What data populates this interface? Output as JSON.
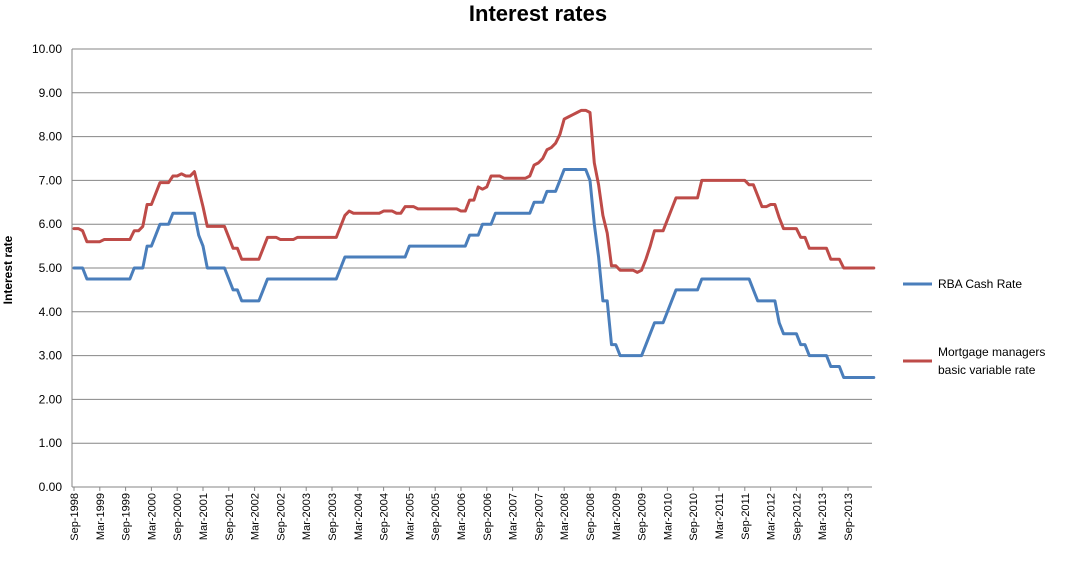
{
  "chart_data": {
    "type": "line",
    "title": "Interest rates",
    "xlabel": "",
    "ylabel": "Interest rate",
    "ylim": [
      0,
      10
    ],
    "yticks": [
      "0.00",
      "1.00",
      "2.00",
      "3.00",
      "4.00",
      "5.00",
      "6.00",
      "7.00",
      "8.00",
      "9.00",
      "10.00"
    ],
    "x_ticks": [
      "Sep-1998",
      "Mar-1999",
      "Sep-1999",
      "Mar-2000",
      "Sep-2000",
      "Mar-2001",
      "Sep-2001",
      "Mar-2002",
      "Sep-2002",
      "Mar-2003",
      "Sep-2003",
      "Mar-2004",
      "Sep-2004",
      "Mar-2005",
      "Sep-2005",
      "Mar-2006",
      "Sep-2006",
      "Mar-2007",
      "Sep-2007",
      "Mar-2008",
      "Sep-2008",
      "Mar-2009",
      "Sep-2009",
      "Mar-2010",
      "Sep-2010",
      "Mar-2011",
      "Sep-2011",
      "Mar-2012",
      "Sep-2012",
      "Mar-2013",
      "Sep-2013"
    ],
    "grid": true,
    "legend_position": "right",
    "series": [
      {
        "name": "RBA Cash Rate",
        "color": "#4a7ebb",
        "points": [
          [
            "Sep-1998",
            5.0
          ],
          [
            "Nov-1998",
            5.0
          ],
          [
            "Dec-1998",
            4.75
          ],
          [
            "Mar-1999",
            4.75
          ],
          [
            "Sep-1999",
            4.75
          ],
          [
            "Oct-1999",
            4.75
          ],
          [
            "Nov-1999",
            5.0
          ],
          [
            "Jan-2000",
            5.0
          ],
          [
            "Feb-2000",
            5.5
          ],
          [
            "Mar-2000",
            5.5
          ],
          [
            "Apr-2000",
            5.75
          ],
          [
            "May-2000",
            6.0
          ],
          [
            "Jul-2000",
            6.0
          ],
          [
            "Aug-2000",
            6.25
          ],
          [
            "Jan-2001",
            6.25
          ],
          [
            "Feb-2001",
            5.75
          ],
          [
            "Mar-2001",
            5.5
          ],
          [
            "Apr-2001",
            5.0
          ],
          [
            "Aug-2001",
            5.0
          ],
          [
            "Sep-2001",
            4.75
          ],
          [
            "Oct-2001",
            4.5
          ],
          [
            "Nov-2001",
            4.5
          ],
          [
            "Dec-2001",
            4.25
          ],
          [
            "Apr-2002",
            4.25
          ],
          [
            "May-2002",
            4.5
          ],
          [
            "Jun-2002",
            4.75
          ],
          [
            "Oct-2003",
            4.75
          ],
          [
            "Nov-2003",
            5.0
          ],
          [
            "Dec-2003",
            5.25
          ],
          [
            "Feb-2005",
            5.25
          ],
          [
            "Mar-2005",
            5.5
          ],
          [
            "Apr-2006",
            5.5
          ],
          [
            "May-2006",
            5.75
          ],
          [
            "Jul-2006",
            5.75
          ],
          [
            "Aug-2006",
            6.0
          ],
          [
            "Oct-2006",
            6.0
          ],
          [
            "Nov-2006",
            6.25
          ],
          [
            "Jul-2007",
            6.25
          ],
          [
            "Aug-2007",
            6.5
          ],
          [
            "Sep-2007",
            6.5
          ],
          [
            "Oct-2007",
            6.5
          ],
          [
            "Nov-2007",
            6.75
          ],
          [
            "Jan-2008",
            6.75
          ],
          [
            "Feb-2008",
            7.0
          ],
          [
            "Mar-2008",
            7.25
          ],
          [
            "Aug-2008",
            7.25
          ],
          [
            "Sep-2008",
            7.0
          ],
          [
            "Oct-2008",
            6.0
          ],
          [
            "Nov-2008",
            5.25
          ],
          [
            "Dec-2008",
            4.25
          ],
          [
            "Jan-2009",
            4.25
          ],
          [
            "Feb-2009",
            3.25
          ],
          [
            "Mar-2009",
            3.25
          ],
          [
            "Apr-2009",
            3.0
          ],
          [
            "Sep-2009",
            3.0
          ],
          [
            "Oct-2009",
            3.25
          ],
          [
            "Nov-2009",
            3.5
          ],
          [
            "Dec-2009",
            3.75
          ],
          [
            "Feb-2010",
            3.75
          ],
          [
            "Mar-2010",
            4.0
          ],
          [
            "Apr-2010",
            4.25
          ],
          [
            "May-2010",
            4.5
          ],
          [
            "Oct-2010",
            4.5
          ],
          [
            "Nov-2010",
            4.75
          ],
          [
            "Oct-2011",
            4.75
          ],
          [
            "Nov-2011",
            4.5
          ],
          [
            "Dec-2011",
            4.25
          ],
          [
            "Apr-2012",
            4.25
          ],
          [
            "May-2012",
            3.75
          ],
          [
            "Jun-2012",
            3.5
          ],
          [
            "Sep-2012",
            3.5
          ],
          [
            "Oct-2012",
            3.25
          ],
          [
            "Nov-2012",
            3.25
          ],
          [
            "Dec-2012",
            3.0
          ],
          [
            "Apr-2013",
            3.0
          ],
          [
            "May-2013",
            2.75
          ],
          [
            "Jul-2013",
            2.75
          ],
          [
            "Aug-2013",
            2.5
          ],
          [
            "Mar-2014",
            2.5
          ]
        ]
      },
      {
        "name": "Mortgage managers basic variable rate",
        "color": "#be4b48",
        "points": [
          [
            "Sep-1998",
            5.9
          ],
          [
            "Oct-1998",
            5.9
          ],
          [
            "Nov-1998",
            5.85
          ],
          [
            "Dec-1998",
            5.6
          ],
          [
            "Feb-1999",
            5.6
          ],
          [
            "Mar-1999",
            5.6
          ],
          [
            "Apr-1999",
            5.65
          ],
          [
            "Sep-1999",
            5.65
          ],
          [
            "Oct-1999",
            5.65
          ],
          [
            "Nov-1999",
            5.85
          ],
          [
            "Dec-1999",
            5.85
          ],
          [
            "Jan-2000",
            5.95
          ],
          [
            "Feb-2000",
            6.45
          ],
          [
            "Mar-2000",
            6.45
          ],
          [
            "Apr-2000",
            6.7
          ],
          [
            "May-2000",
            6.95
          ],
          [
            "Jul-2000",
            6.95
          ],
          [
            "Aug-2000",
            7.1
          ],
          [
            "Sep-2000",
            7.1
          ],
          [
            "Oct-2000",
            7.15
          ],
          [
            "Nov-2000",
            7.1
          ],
          [
            "Dec-2000",
            7.1
          ],
          [
            "Jan-2001",
            7.2
          ],
          [
            "Feb-2001",
            6.8
          ],
          [
            "Mar-2001",
            6.4
          ],
          [
            "Apr-2001",
            5.95
          ],
          [
            "Aug-2001",
            5.95
          ],
          [
            "Sep-2001",
            5.7
          ],
          [
            "Oct-2001",
            5.45
          ],
          [
            "Nov-2001",
            5.45
          ],
          [
            "Dec-2001",
            5.2
          ],
          [
            "Apr-2002",
            5.2
          ],
          [
            "May-2002",
            5.45
          ],
          [
            "Jun-2002",
            5.7
          ],
          [
            "Aug-2002",
            5.7
          ],
          [
            "Sep-2002",
            5.65
          ],
          [
            "Dec-2002",
            5.65
          ],
          [
            "Jan-2003",
            5.7
          ],
          [
            "Oct-2003",
            5.7
          ],
          [
            "Nov-2003",
            5.95
          ],
          [
            "Dec-2003",
            6.2
          ],
          [
            "Jan-2004",
            6.3
          ],
          [
            "Feb-2004",
            6.25
          ],
          [
            "Aug-2004",
            6.25
          ],
          [
            "Sep-2004",
            6.3
          ],
          [
            "Nov-2004",
            6.3
          ],
          [
            "Dec-2004",
            6.25
          ],
          [
            "Jan-2005",
            6.25
          ],
          [
            "Feb-2005",
            6.4
          ],
          [
            "Apr-2005",
            6.4
          ],
          [
            "May-2005",
            6.35
          ],
          [
            "Feb-2006",
            6.35
          ],
          [
            "Mar-2006",
            6.3
          ],
          [
            "Apr-2006",
            6.3
          ],
          [
            "May-2006",
            6.55
          ],
          [
            "Jun-2006",
            6.55
          ],
          [
            "Jul-2006",
            6.85
          ],
          [
            "Aug-2006",
            6.8
          ],
          [
            "Sep-2006",
            6.85
          ],
          [
            "Oct-2006",
            7.1
          ],
          [
            "Dec-2006",
            7.1
          ],
          [
            "Jan-2007",
            7.05
          ],
          [
            "Jun-2007",
            7.05
          ],
          [
            "Jul-2007",
            7.1
          ],
          [
            "Aug-2007",
            7.35
          ],
          [
            "Sep-2007",
            7.4
          ],
          [
            "Oct-2007",
            7.5
          ],
          [
            "Nov-2007",
            7.7
          ],
          [
            "Dec-2007",
            7.75
          ],
          [
            "Jan-2008",
            7.85
          ],
          [
            "Feb-2008",
            8.05
          ],
          [
            "Mar-2008",
            8.4
          ],
          [
            "Apr-2008",
            8.45
          ],
          [
            "May-2008",
            8.5
          ],
          [
            "Jun-2008",
            8.55
          ],
          [
            "Jul-2008",
            8.6
          ],
          [
            "Aug-2008",
            8.6
          ],
          [
            "Sep-2008",
            8.55
          ],
          [
            "Oct-2008",
            7.4
          ],
          [
            "Nov-2008",
            6.9
          ],
          [
            "Dec-2008",
            6.2
          ],
          [
            "Jan-2009",
            5.8
          ],
          [
            "Feb-2009",
            5.05
          ],
          [
            "Mar-2009",
            5.05
          ],
          [
            "Apr-2009",
            4.95
          ],
          [
            "Jul-2009",
            4.95
          ],
          [
            "Aug-2009",
            4.9
          ],
          [
            "Sep-2009",
            4.95
          ],
          [
            "Oct-2009",
            5.2
          ],
          [
            "Nov-2009",
            5.5
          ],
          [
            "Dec-2009",
            5.85
          ],
          [
            "Feb-2010",
            5.85
          ],
          [
            "Mar-2010",
            6.1
          ],
          [
            "Apr-2010",
            6.35
          ],
          [
            "May-2010",
            6.6
          ],
          [
            "Oct-2010",
            6.6
          ],
          [
            "Nov-2010",
            7.0
          ],
          [
            "Sep-2011",
            7.0
          ],
          [
            "Oct-2011",
            6.9
          ],
          [
            "Nov-2011",
            6.9
          ],
          [
            "Dec-2011",
            6.65
          ],
          [
            "Jan-2012",
            6.4
          ],
          [
            "Feb-2012",
            6.4
          ],
          [
            "Mar-2012",
            6.45
          ],
          [
            "Apr-2012",
            6.45
          ],
          [
            "May-2012",
            6.15
          ],
          [
            "Jun-2012",
            5.9
          ],
          [
            "Sep-2012",
            5.9
          ],
          [
            "Oct-2012",
            5.7
          ],
          [
            "Nov-2012",
            5.7
          ],
          [
            "Dec-2012",
            5.45
          ],
          [
            "Apr-2013",
            5.45
          ],
          [
            "May-2013",
            5.2
          ],
          [
            "Jul-2013",
            5.2
          ],
          [
            "Aug-2013",
            5.0
          ],
          [
            "Mar-2014",
            5.0
          ]
        ]
      }
    ]
  }
}
